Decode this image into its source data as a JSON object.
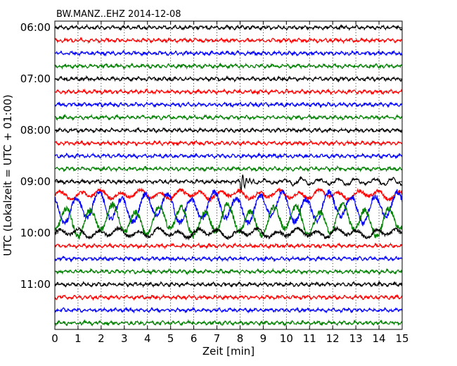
{
  "chart_data": {
    "type": "line",
    "title": "BW.MANZ..EHZ 2014-12-08",
    "xlabel": "Zeit  [min]",
    "ylabel": "UTC (Lokalzeit = UTC + 01:00)",
    "xlim": [
      0,
      15
    ],
    "x_ticks": [
      "0",
      "1",
      "2",
      "3",
      "4",
      "5",
      "6",
      "7",
      "8",
      "9",
      "10",
      "11",
      "12",
      "13",
      "14",
      "15"
    ],
    "y_ticks": [
      "06:00",
      "07:00",
      "08:00",
      "09:00",
      "10:00",
      "11:00"
    ],
    "trace_interval_min": 15,
    "trace_count": 24,
    "grid": "vertical dotted",
    "colors": [
      "#000000",
      "#ff0000",
      "#0000ff",
      "#008000"
    ],
    "traces": [
      {
        "start": "06:00",
        "color": "#000000",
        "amplitude": "low"
      },
      {
        "start": "06:15",
        "color": "#ff0000",
        "amplitude": "low"
      },
      {
        "start": "06:30",
        "color": "#0000ff",
        "amplitude": "low"
      },
      {
        "start": "06:45",
        "color": "#008000",
        "amplitude": "low"
      },
      {
        "start": "07:00",
        "color": "#000000",
        "amplitude": "low"
      },
      {
        "start": "07:15",
        "color": "#ff0000",
        "amplitude": "low"
      },
      {
        "start": "07:30",
        "color": "#0000ff",
        "amplitude": "low"
      },
      {
        "start": "07:45",
        "color": "#008000",
        "amplitude": "low"
      },
      {
        "start": "08:00",
        "color": "#000000",
        "amplitude": "low"
      },
      {
        "start": "08:15",
        "color": "#ff0000",
        "amplitude": "low"
      },
      {
        "start": "08:30",
        "color": "#0000ff",
        "amplitude": "low"
      },
      {
        "start": "08:45",
        "color": "#008000",
        "amplitude": "low"
      },
      {
        "start": "09:00",
        "color": "#000000",
        "amplitude": "low",
        "event_min": 8.0
      },
      {
        "start": "09:15",
        "color": "#ff0000",
        "amplitude": "medium"
      },
      {
        "start": "09:30",
        "color": "#0000ff",
        "amplitude": "high"
      },
      {
        "start": "09:45",
        "color": "#008000",
        "amplitude": "high"
      },
      {
        "start": "10:00",
        "color": "#000000",
        "amplitude": "medium"
      },
      {
        "start": "10:15",
        "color": "#ff0000",
        "amplitude": "low"
      },
      {
        "start": "10:30",
        "color": "#0000ff",
        "amplitude": "low"
      },
      {
        "start": "10:45",
        "color": "#008000",
        "amplitude": "low"
      },
      {
        "start": "11:00",
        "color": "#000000",
        "amplitude": "low"
      },
      {
        "start": "11:15",
        "color": "#ff0000",
        "amplitude": "low"
      },
      {
        "start": "11:30",
        "color": "#0000ff",
        "amplitude": "low"
      },
      {
        "start": "11:45",
        "color": "#008000",
        "amplitude": "low"
      }
    ]
  }
}
